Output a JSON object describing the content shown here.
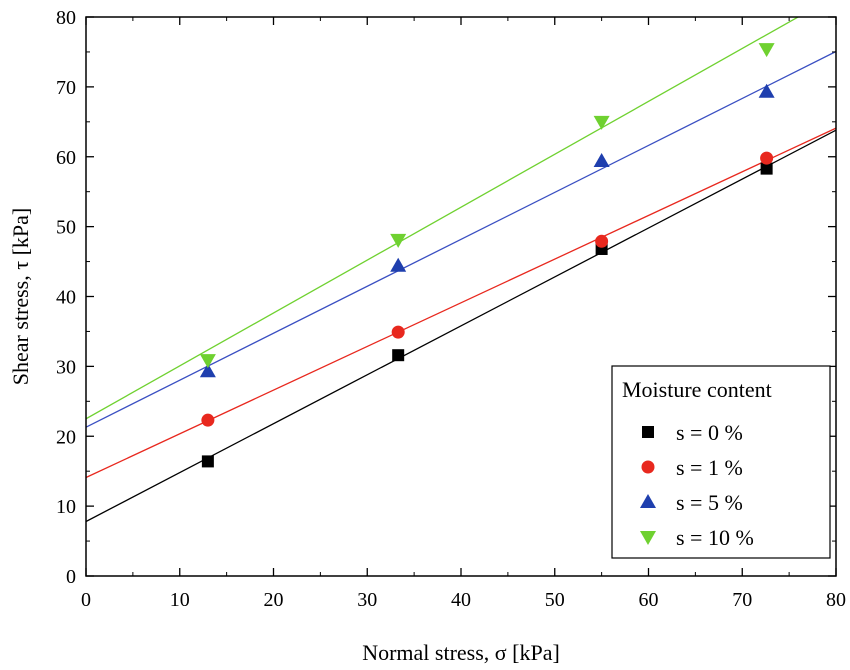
{
  "chart_data": {
    "type": "scatter",
    "xlabel": "Normal stress, σ [kPa]",
    "ylabel": "Shear stress, τ [kPa]",
    "xlim": [
      0,
      80
    ],
    "ylim": [
      0,
      80
    ],
    "xticks": [
      0,
      10,
      20,
      30,
      40,
      50,
      60,
      70,
      80
    ],
    "yticks": [
      0,
      10,
      20,
      30,
      40,
      50,
      60,
      70,
      80
    ],
    "grid": false,
    "legend": {
      "title": "Moisture content",
      "placement": "bottom-right"
    },
    "series": [
      {
        "name": "s = 0 %",
        "marker": "square",
        "color": "#000000",
        "line_color": "#000000",
        "x": [
          13,
          33.3,
          55,
          72.6
        ],
        "y": [
          16.4,
          31.6,
          46.8,
          58.3
        ],
        "fit": {
          "intercept": 7.8,
          "slope": 0.7
        }
      },
      {
        "name": "s = 1 %",
        "marker": "circle",
        "color": "#e8281e",
        "line_color": "#e8281e",
        "x": [
          13,
          33.3,
          55,
          72.6
        ],
        "y": [
          22.3,
          34.9,
          47.9,
          59.8
        ],
        "fit": {
          "intercept": 14.1,
          "slope": 0.625
        }
      },
      {
        "name": "s = 5 %",
        "marker": "triangle-up",
        "color": "#1f3fae",
        "line_color": "#3a4fc2",
        "x": [
          13,
          33.3,
          55,
          72.6
        ],
        "y": [
          29.3,
          44.4,
          59.4,
          69.3
        ],
        "fit": {
          "intercept": 21.3,
          "slope": 0.672
        }
      },
      {
        "name": "s = 10 %",
        "marker": "triangle-down",
        "color": "#6fd130",
        "line_color": "#6fd130",
        "x": [
          13,
          33.3,
          55,
          72.6
        ],
        "y": [
          30.9,
          48.1,
          65.0,
          75.4
        ],
        "fit": {
          "intercept": 22.5,
          "slope": 0.757
        }
      }
    ]
  }
}
